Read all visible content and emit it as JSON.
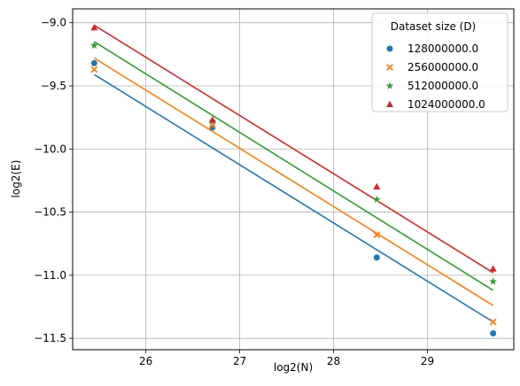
{
  "chart_data": {
    "type": "scatter",
    "title": "",
    "xlabel": "log2(N)",
    "ylabel": "log2(E)",
    "xlim": [
      25.22,
      29.92
    ],
    "ylim": [
      -11.59,
      -8.89
    ],
    "xticks": [
      26,
      27,
      28,
      29
    ],
    "yticks": [
      -11.5,
      -11.0,
      -10.5,
      -10.0,
      -9.5,
      -9.0
    ],
    "x_tick_labels": [
      "26",
      "27",
      "28",
      "29"
    ],
    "y_tick_labels": [
      "−11.5",
      "−11.0",
      "−10.5",
      "−10.0",
      "−9.5",
      "−9.0"
    ],
    "grid": true,
    "legend": {
      "title": "Dataset size (D)",
      "placement": "top-right"
    },
    "x": [
      25.45,
      26.71,
      28.46,
      29.7
    ],
    "series": [
      {
        "name": "128000000.0",
        "color": "#1f77b4",
        "marker": "circle",
        "values": [
          -9.32,
          -9.83,
          -10.86,
          -11.46
        ],
        "fit": [
          -9.41,
          -11.37
        ]
      },
      {
        "name": "256000000.0",
        "color": "#ff7f0e",
        "marker": "x",
        "values": [
          -9.37,
          -9.81,
          -10.68,
          -11.37
        ],
        "fit": [
          -9.28,
          -11.24
        ]
      },
      {
        "name": "512000000.0",
        "color": "#2ca02c",
        "marker": "star",
        "values": [
          -9.18,
          -9.78,
          -10.4,
          -11.05
        ],
        "fit": [
          -9.15,
          -11.12
        ]
      },
      {
        "name": "1024000000.0",
        "color": "#d62728",
        "marker": "triangle",
        "values": [
          -9.04,
          -9.77,
          -10.3,
          -10.95
        ],
        "fit": [
          -9.02,
          -10.98
        ]
      }
    ]
  }
}
